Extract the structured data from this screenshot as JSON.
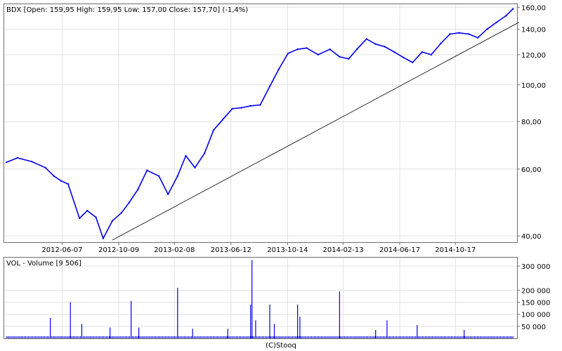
{
  "chart_data": [
    {
      "type": "line",
      "title": "BDX [Open: 159,95  High: 159,95  Low: 157,00  Close: 157,70] (-1,4%)",
      "yscale": "log",
      "ylim": [
        38.5,
        163
      ],
      "y_ticks": [
        40,
        60,
        80,
        100,
        120,
        140,
        160
      ],
      "y_tick_labels": [
        "40,00",
        "60,00",
        "80,00",
        "100,00",
        "120,00",
        "140,00",
        "160,00"
      ],
      "x_tick_labels": [
        "2012-06-07",
        "2012-10-09",
        "2013-02-08",
        "2013-06-12",
        "2013-10-14",
        "2014-02-13",
        "2014-06-17",
        "2014-10-17"
      ],
      "grid": true,
      "color": "#0000ee",
      "series": [
        {
          "x": [
            "2012-02-06",
            "2012-03-01",
            "2012-04-01",
            "2012-05-01",
            "2012-05-20",
            "2012-06-05",
            "2012-06-20",
            "2012-07-15",
            "2012-08-01",
            "2012-08-20",
            "2012-09-05",
            "2012-09-25",
            "2012-10-15",
            "2012-11-01",
            "2012-11-20",
            "2012-12-10",
            "2013-01-05",
            "2013-01-25",
            "2013-02-15",
            "2013-03-05",
            "2013-03-25",
            "2013-04-15",
            "2013-05-05",
            "2013-05-25",
            "2013-06-15",
            "2013-07-05",
            "2013-07-25",
            "2013-08-15",
            "2013-09-05",
            "2013-09-25",
            "2013-10-15",
            "2013-11-05",
            "2013-11-25",
            "2013-12-20",
            "2014-01-15",
            "2014-02-05",
            "2014-02-25",
            "2014-03-15",
            "2014-04-05",
            "2014-04-25",
            "2014-05-15",
            "2014-06-05",
            "2014-06-25",
            "2014-07-15",
            "2014-08-05",
            "2014-08-25",
            "2014-09-15",
            "2014-10-05",
            "2014-10-25",
            "2014-11-15",
            "2014-12-05",
            "2014-12-25",
            "2015-01-15",
            "2015-02-05",
            "2015-02-20"
          ],
          "y": [
            62.5,
            64.2,
            62.8,
            60.5,
            57.5,
            55.8,
            54.8,
            44.5,
            46.6,
            44.8,
            39.4,
            43.8,
            46.0,
            49.0,
            53.0,
            59.5,
            57.5,
            51.5,
            57.5,
            65.0,
            60.5,
            66.0,
            76.0,
            81.0,
            86.5,
            87.0,
            88.0,
            88.5,
            99.0,
            110.0,
            121.0,
            124.0,
            125.0,
            120.0,
            124.0,
            118.5,
            117.0,
            124.0,
            132.0,
            128.0,
            126.0,
            122.0,
            118.0,
            114.5,
            122.0,
            120.0,
            128.5,
            136.0,
            137.0,
            136.0,
            133.0,
            140.0,
            146.0,
            152.0,
            158.5
          ]
        },
        {
          "name": "",
          "x": [
            "2012-09-25",
            "2015-03-05"
          ],
          "y": [
            39.0,
            146.0
          ]
        }
      ]
    },
    {
      "type": "bar",
      "title": "VOL - Volume [9 506]",
      "ylim": [
        0,
        335000
      ],
      "y_ticks": [
        50000,
        100000,
        150000,
        200000,
        300000
      ],
      "y_tick_labels": [
        "50 000",
        "100 000",
        "150 000",
        "200 000",
        "300 000"
      ],
      "color": "#0000ee",
      "baseline_volume": 9000,
      "spikes": [
        {
          "x": "2012-05-12",
          "value": 85000
        },
        {
          "x": "2012-06-25",
          "value": 150000
        },
        {
          "x": "2012-07-20",
          "value": 60000
        },
        {
          "x": "2012-09-20",
          "value": 45000
        },
        {
          "x": "2012-11-05",
          "value": 155000
        },
        {
          "x": "2012-11-22",
          "value": 45000
        },
        {
          "x": "2013-02-15",
          "value": 210000
        },
        {
          "x": "2013-03-20",
          "value": 40000
        },
        {
          "x": "2013-06-05",
          "value": 40000
        },
        {
          "x": "2013-07-25",
          "value": 140000
        },
        {
          "x": "2013-07-28",
          "value": 325000
        },
        {
          "x": "2013-08-05",
          "value": 75000
        },
        {
          "x": "2013-09-05",
          "value": 140000
        },
        {
          "x": "2013-09-15",
          "value": 60000
        },
        {
          "x": "2013-11-05",
          "value": 140000
        },
        {
          "x": "2013-11-10",
          "value": 90000
        },
        {
          "x": "2014-02-05",
          "value": 195000
        },
        {
          "x": "2014-04-25",
          "value": 35000
        },
        {
          "x": "2014-05-20",
          "value": 75000
        },
        {
          "x": "2014-07-25",
          "value": 55000
        },
        {
          "x": "2014-11-05",
          "value": 35000
        }
      ]
    }
  ],
  "footer": {
    "credit": "(C)Stooq"
  }
}
